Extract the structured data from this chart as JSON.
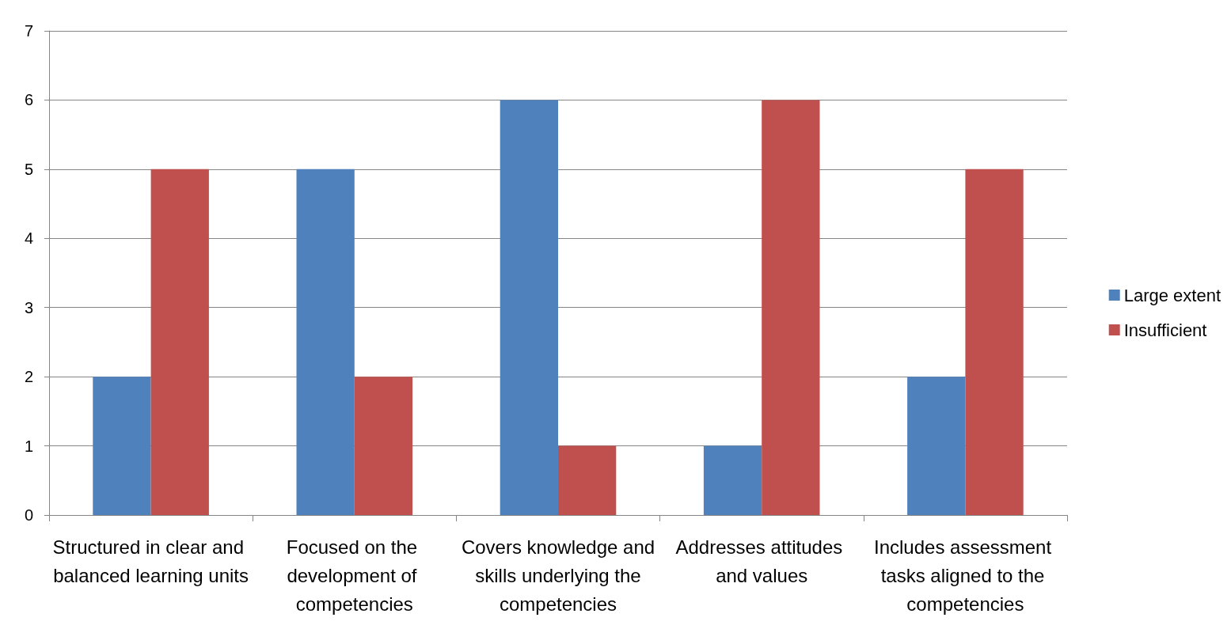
{
  "chart_data": {
    "type": "bar",
    "categories": [
      "Structured in clear and balanced learning units",
      "Focused on the development of competencies",
      "Covers knowledge and skills underlying the competencies",
      "Addresses attitudes and values",
      "Includes assessment tasks aligned to the competencies"
    ],
    "series": [
      {
        "name": "Large extent",
        "color": "#4f81bd",
        "values": [
          2,
          5,
          6,
          1,
          2
        ]
      },
      {
        "name": "Insufficient",
        "color": "#c0504d",
        "values": [
          5,
          2,
          1,
          6,
          5
        ]
      }
    ],
    "ylim": [
      0,
      7
    ],
    "yticks": [
      0,
      1,
      2,
      3,
      4,
      5,
      6,
      7
    ],
    "grid": "y",
    "legend": "right"
  }
}
